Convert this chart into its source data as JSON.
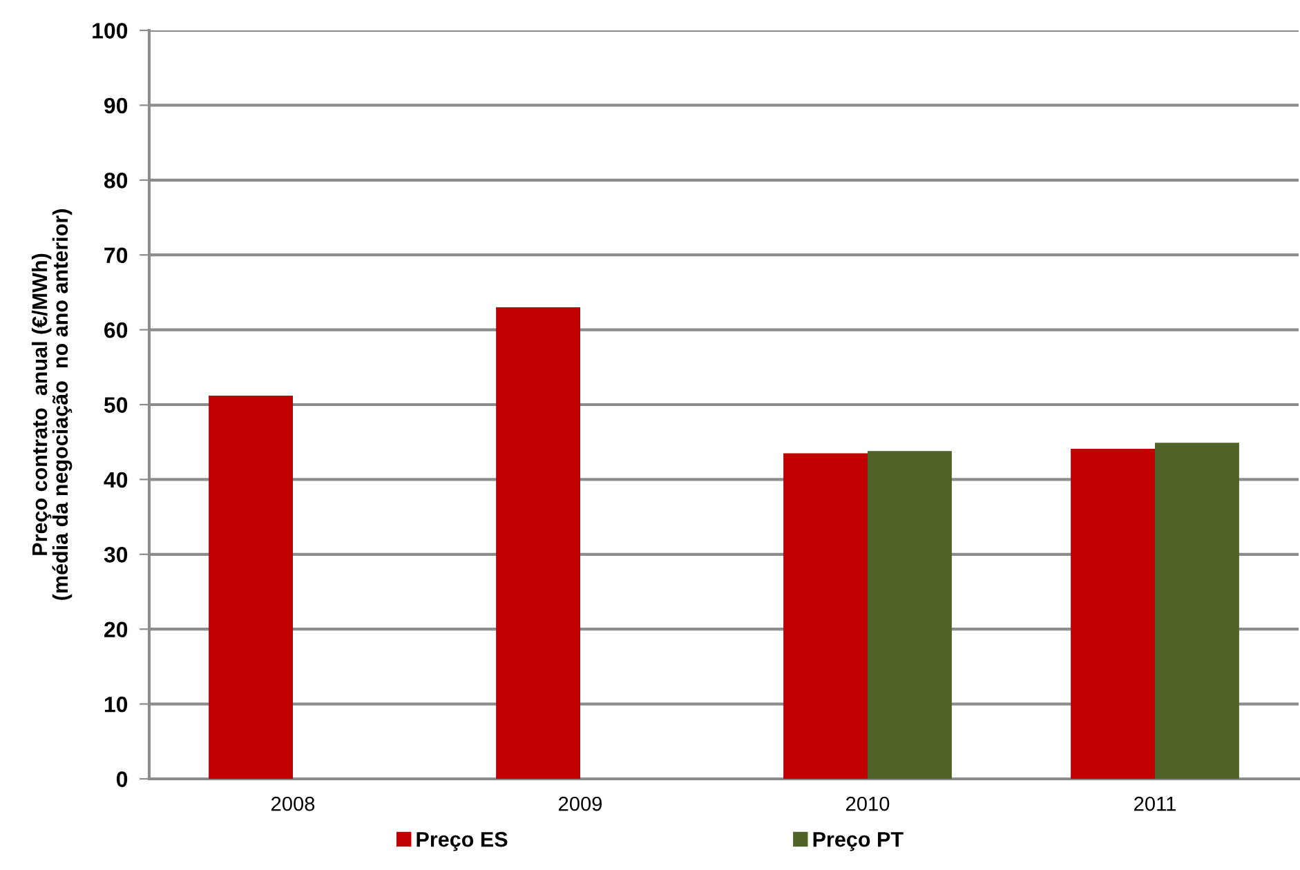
{
  "chart_data": {
    "type": "bar",
    "ylabel": "Preço contrato  anual (€/MWh)\n(média da negociação  no ano anterior)",
    "categories": [
      "2008",
      "2009",
      "2010",
      "2011"
    ],
    "series": [
      {
        "name": "Preço ES",
        "color": "#c00000",
        "values": [
          51.2,
          63.0,
          43.5,
          44.1
        ]
      },
      {
        "name": "Preço PT",
        "color": "#4f6228",
        "values": [
          null,
          null,
          43.8,
          44.9
        ]
      }
    ],
    "ylim": [
      0,
      100
    ],
    "yticks": [
      0,
      10,
      20,
      30,
      40,
      50,
      60,
      70,
      80,
      90,
      100
    ],
    "grid": "y",
    "legend": "bottom"
  }
}
